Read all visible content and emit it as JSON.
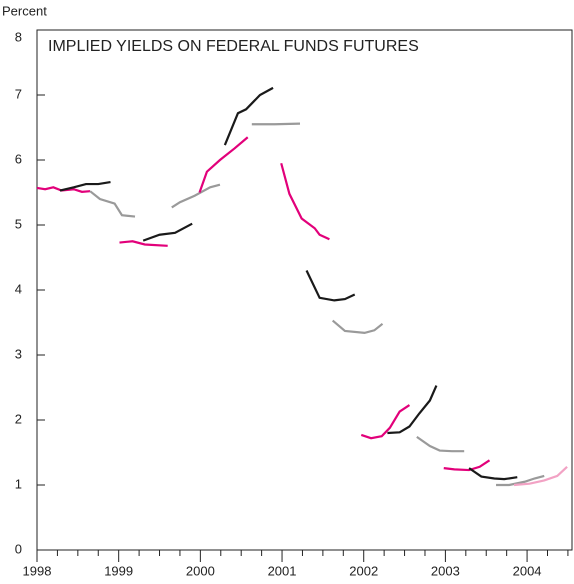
{
  "chart_data": {
    "type": "line",
    "title": "IMPLIED YIELDS ON FEDERAL FUNDS FUTURES",
    "y_label": "Percent",
    "xlim": [
      1998,
      2004.55
    ],
    "xticks": [
      1998,
      1999,
      2000,
      2001,
      2002,
      2003,
      2004
    ],
    "ylim": [
      0,
      8
    ],
    "yticks": [
      0,
      1,
      2,
      3,
      4,
      5,
      6,
      7,
      8
    ],
    "series": [
      {
        "color": "#e2007a",
        "x": [
          1998,
          1998.1,
          1998.2,
          1998.3,
          1998.45,
          1998.55,
          1998.65
        ],
        "values": [
          5.57,
          5.55,
          5.58,
          5.53,
          5.55,
          5.51,
          5.52
        ]
      },
      {
        "color": "#1a1a1a",
        "x": [
          1998.28,
          1998.45,
          1998.6,
          1998.75,
          1998.9
        ],
        "values": [
          5.53,
          5.58,
          5.63,
          5.63,
          5.66
        ]
      },
      {
        "color": "#9a9a9a",
        "x": [
          1998.65,
          1998.77,
          1998.95,
          1999.04,
          1999.2
        ],
        "values": [
          5.52,
          5.4,
          5.33,
          5.15,
          5.13
        ]
      },
      {
        "color": "#e2007a",
        "x": [
          1999.01,
          1999.17,
          1999.32,
          1999.6
        ],
        "values": [
          4.73,
          4.75,
          4.7,
          4.68
        ]
      },
      {
        "color": "#1a1a1a",
        "x": [
          1999.3,
          1999.5,
          1999.69,
          1999.9
        ],
        "values": [
          4.76,
          4.85,
          4.88,
          5.02
        ]
      },
      {
        "color": "#9a9a9a",
        "x": [
          1999.65,
          1999.75,
          1999.93,
          2000.12,
          2000.24
        ],
        "values": [
          5.27,
          5.35,
          5.45,
          5.58,
          5.62
        ]
      },
      {
        "color": "#e2007a",
        "x": [
          1999.99,
          2000.08,
          2000.24,
          2000.42,
          2000.58
        ],
        "values": [
          5.5,
          5.82,
          6.0,
          6.18,
          6.35
        ]
      },
      {
        "color": "#1a1a1a",
        "x": [
          2000.3,
          2000.46,
          2000.56,
          2000.73,
          2000.89
        ],
        "values": [
          6.23,
          6.72,
          6.78,
          7.0,
          7.11
        ]
      },
      {
        "color": "#9a9a9a",
        "x": [
          2000.63,
          2000.91,
          2001.22
        ],
        "values": [
          6.55,
          6.55,
          6.56
        ]
      },
      {
        "color": "#e2007a",
        "x": [
          2000.99,
          2001.09,
          2001.24,
          2001.4,
          2001.46,
          2001.58
        ],
        "values": [
          5.95,
          5.48,
          5.1,
          4.95,
          4.85,
          4.78
        ]
      },
      {
        "color": "#1a1a1a",
        "x": [
          2001.3,
          2001.46,
          2001.64,
          2001.77,
          2001.89
        ],
        "values": [
          4.3,
          3.88,
          3.84,
          3.86,
          3.93
        ]
      },
      {
        "color": "#9a9a9a",
        "x": [
          2001.62,
          2001.77,
          2002.01,
          2002.13,
          2002.23
        ],
        "values": [
          3.53,
          3.37,
          3.34,
          3.38,
          3.48
        ]
      },
      {
        "color": "#e2007a",
        "x": [
          2001.97,
          2002.09,
          2002.22,
          2002.32,
          2002.44,
          2002.56
        ],
        "values": [
          1.77,
          1.72,
          1.75,
          1.88,
          2.13,
          2.23
        ]
      },
      {
        "color": "#1a1a1a",
        "x": [
          2002.29,
          2002.44,
          2002.56,
          2002.68,
          2002.81,
          2002.89
        ],
        "values": [
          1.8,
          1.81,
          1.9,
          2.1,
          2.3,
          2.53
        ]
      },
      {
        "color": "#9a9a9a",
        "x": [
          2002.65,
          2002.81,
          2002.93,
          2003.08,
          2003.23
        ],
        "values": [
          1.74,
          1.6,
          1.53,
          1.52,
          1.52
        ]
      },
      {
        "color": "#e2007a",
        "x": [
          2002.98,
          2003.11,
          2003.29,
          2003.42,
          2003.54
        ],
        "values": [
          1.26,
          1.24,
          1.23,
          1.28,
          1.38
        ]
      },
      {
        "color": "#1a1a1a",
        "x": [
          2003.29,
          2003.44,
          2003.6,
          2003.72,
          2003.88
        ],
        "values": [
          1.26,
          1.13,
          1.1,
          1.09,
          1.12
        ]
      },
      {
        "color": "#9a9a9a",
        "x": [
          2003.62,
          2003.78,
          2003.97,
          2004.09,
          2004.21
        ],
        "values": [
          1.0,
          1.0,
          1.05,
          1.1,
          1.14
        ]
      },
      {
        "color": "#f2a2c4",
        "x": [
          2003.84,
          2004.03,
          2004.21,
          2004.37,
          2004.49
        ],
        "values": [
          1.0,
          1.02,
          1.07,
          1.14,
          1.28
        ]
      }
    ]
  }
}
